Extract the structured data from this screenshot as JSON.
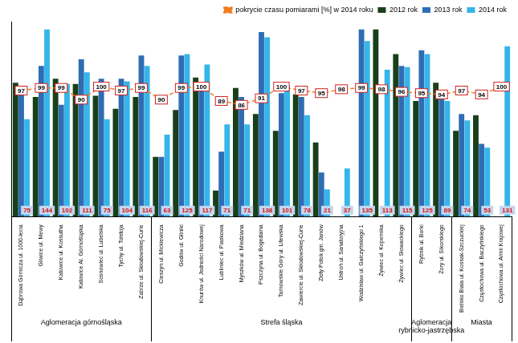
{
  "chart_data": {
    "type": "bar",
    "categories": [
      "Dąbrowa Górnicza ul. 1000-lecia",
      "Gliwice ul. Mewy",
      "Katowice ul. Kossutha",
      "Katowice Al. Górnośląska",
      "Sosnowiec ul. Lubelska",
      "Tychy ul. Tołstoja",
      "Zabrze ul. Skłodowskiej-Curie",
      "Cieszyn ul. Mickiewicza",
      "Godów ul. Gliniki",
      "Knurów ul. Jedności Narodowej",
      "Lubliniec ul. Piaskowa",
      "Myszków ul. Miedziana",
      "Pszczyna ul. Bogedaina",
      "Tarnowskie Góry ul. Litewska",
      "Zawiercie ul. Skłodowskiej-Curie",
      "Złoty Potok gm. Janów",
      "Ustroń ul. Sanatoryjna",
      "Wodzisław ul. Gałczyńskiego 1",
      "Żywiec ul. Kopernika",
      "Żywiec ul. Słowackiego",
      "Rybnik ul. Borki",
      "Żory ul. Sikorskiego",
      "Bielsko Biała ul. Kossak-Szczuckiej",
      "Częstochowa ul. Baczyńskiego",
      "Częstochowa ul. Armii Krajowej"
    ],
    "series": [
      {
        "name": "2012 rok",
        "color": "#183f1a",
        "values": [
          103,
          92,
          106,
          102,
          93,
          83,
          92,
          46,
          82,
          107,
          20,
          99,
          79,
          66,
          94,
          57,
          null,
          null,
          144,
          125,
          89,
          103,
          66,
          78,
          null
        ]
      },
      {
        "name": "2013 rok",
        "color": "#2e6db4",
        "values": [
          94,
          116,
          86,
          121,
          106,
          106,
          124,
          46,
          124,
          103,
          50,
          92,
          142,
          95,
          92,
          34,
          null,
          144,
          null,
          116,
          128,
          93,
          79,
          56,
          null
        ]
      },
      {
        "name": "2014 rok",
        "color": "#35b5ea",
        "data_labels": true,
        "values": [
          75,
          144,
          102,
          111,
          75,
          104,
          116,
          63,
          125,
          117,
          71,
          71,
          138,
          101,
          78,
          21,
          37,
          135,
          113,
          115,
          125,
          89,
          74,
          53,
          131
        ]
      },
      {
        "name": "pokrycie czasu pomiarami [%] w 2014 roku",
        "type": "line",
        "color": "#f07f22",
        "marker": "square",
        "line_style": "dashed",
        "data_labels": true,
        "values": [
          97,
          99,
          99,
          90,
          100,
          97,
          99,
          90,
          99,
          100,
          89,
          86,
          91,
          100,
          97,
          95,
          98,
          99,
          98,
          96,
          95,
          94,
          97,
          94,
          100
        ]
      }
    ],
    "groups": [
      {
        "label": "Aglomeracja górnośląska",
        "count": 7
      },
      {
        "label": "Strefa śląska",
        "count": 13
      },
      {
        "label": "Aglomeracja rybnicko-jastrzębska",
        "count": 2
      },
      {
        "label": "Miasta",
        "count": 3
      }
    ],
    "ylim": [
      0,
      150
    ],
    "tick_labels": "x",
    "grid": false,
    "legend": "top"
  }
}
